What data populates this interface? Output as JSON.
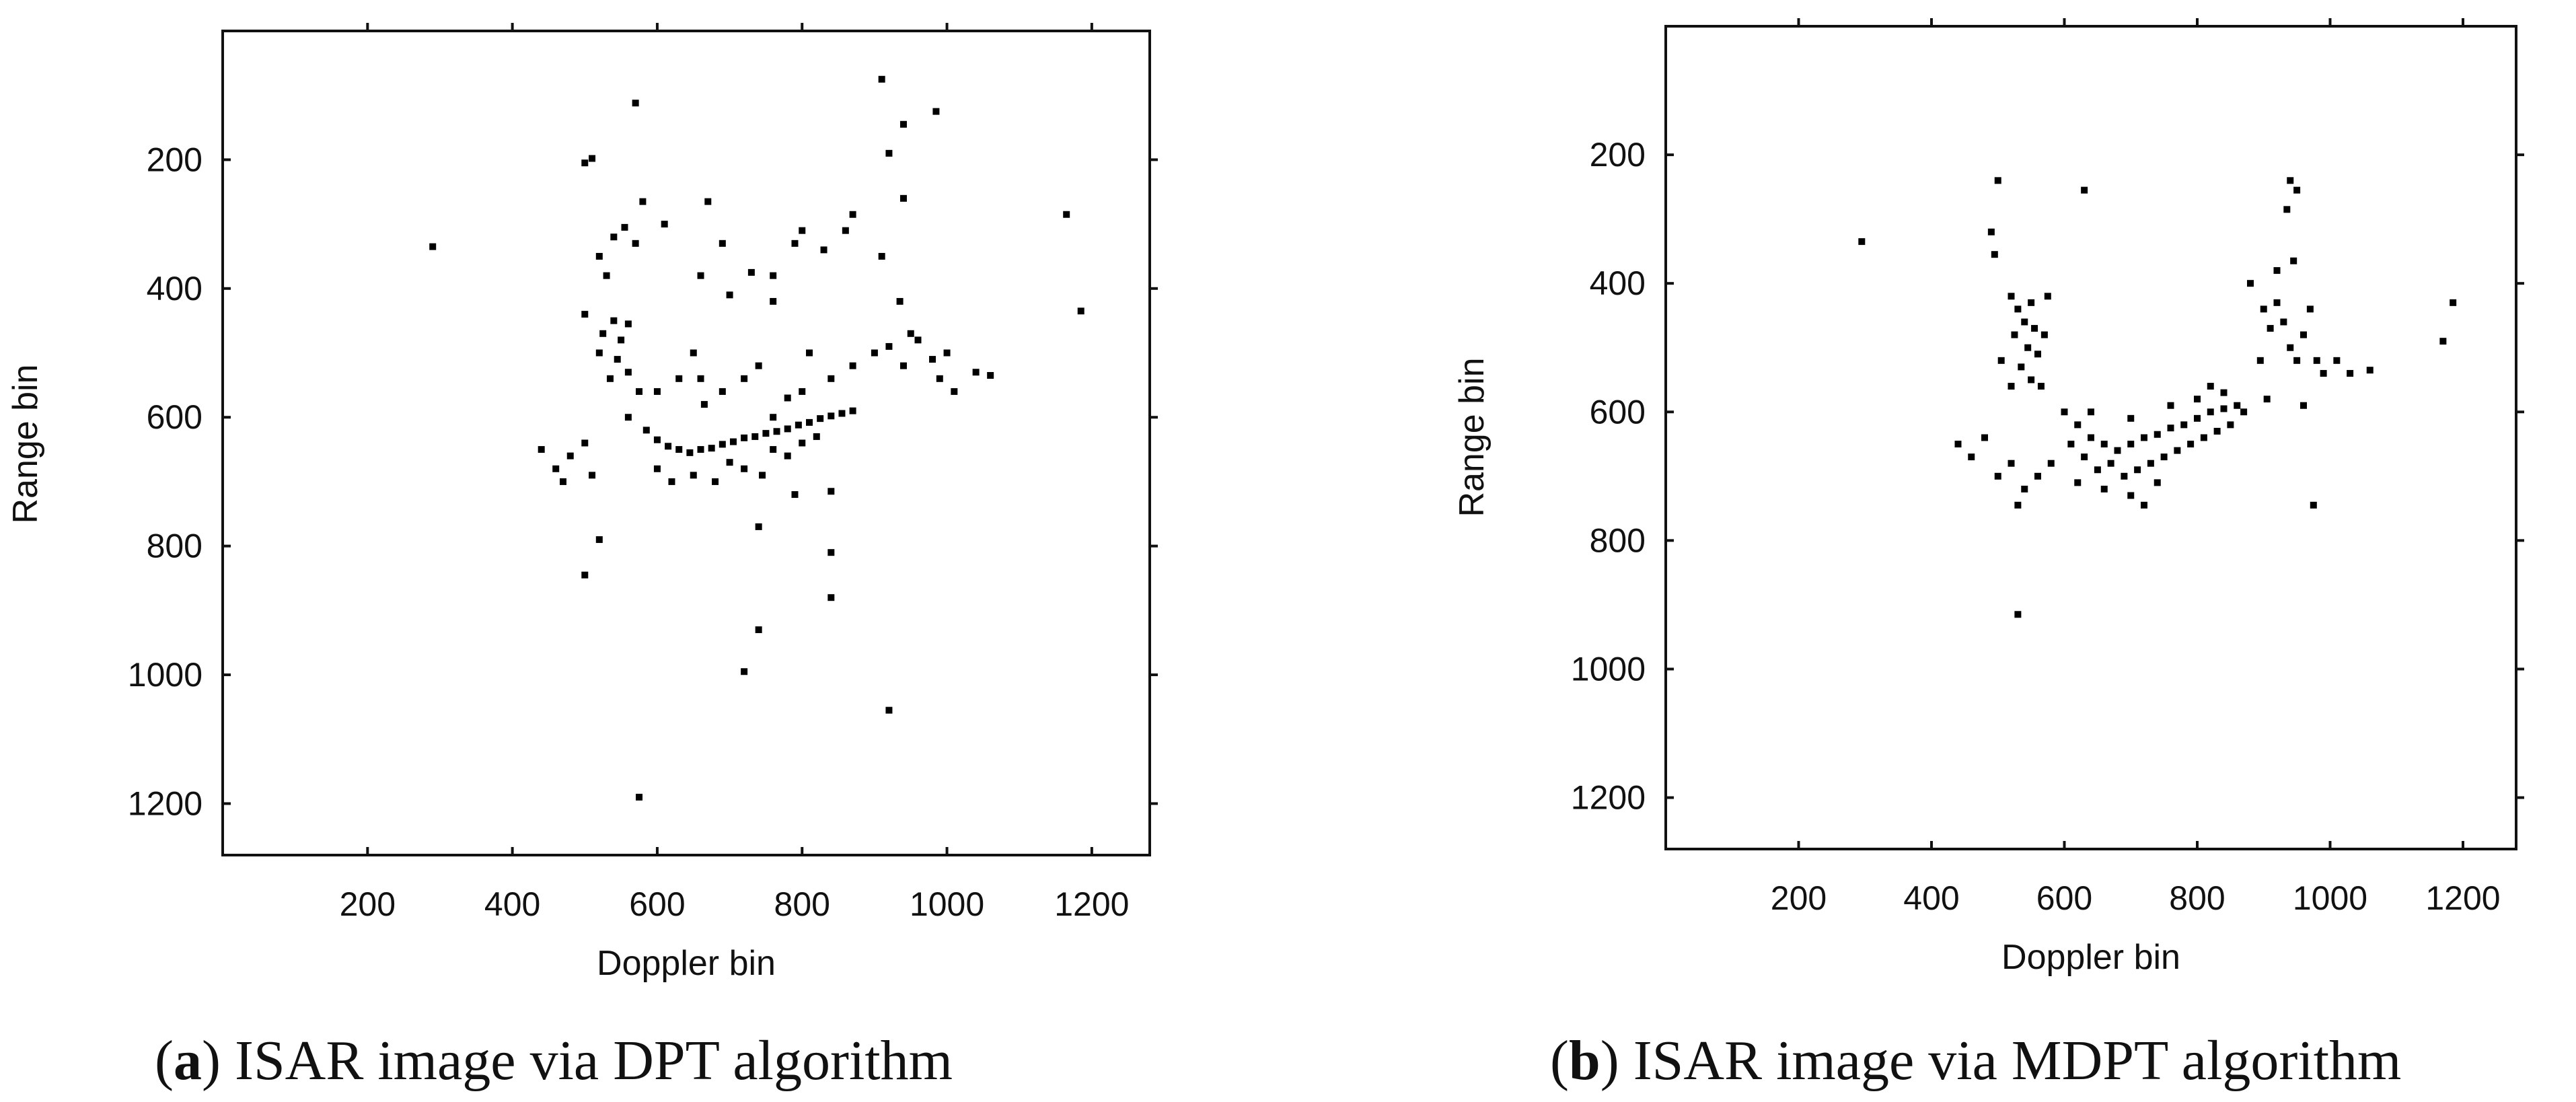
{
  "chart_data": [
    {
      "type": "scatter",
      "xlabel": "Doppler bin",
      "ylabel": "Range bin",
      "xlim": [
        0,
        1280
      ],
      "ylim": [
        0,
        1280
      ],
      "y_inverted": true,
      "xticks": [
        200,
        400,
        600,
        800,
        1000,
        1200
      ],
      "yticks": [
        200,
        400,
        600,
        800,
        1000,
        1200
      ],
      "grid": false,
      "caption_tag": "a",
      "caption_text": " ISAR image via DPT algorithm",
      "series": [
        {
          "marker_color": "#000000",
          "points": [
            [
              290,
              335
            ],
            [
              500,
              205
            ],
            [
              510,
              198
            ],
            [
              570,
              112
            ],
            [
              910,
              75
            ],
            [
              940,
              145
            ],
            [
              985,
              125
            ],
            [
              920,
              190
            ],
            [
              520,
              350
            ],
            [
              540,
              320
            ],
            [
              530,
              380
            ],
            [
              555,
              305
            ],
            [
              570,
              330
            ],
            [
              580,
              265
            ],
            [
              610,
              300
            ],
            [
              670,
              265
            ],
            [
              690,
              330
            ],
            [
              660,
              380
            ],
            [
              700,
              410
            ],
            [
              730,
              375
            ],
            [
              760,
              380
            ],
            [
              760,
              420
            ],
            [
              790,
              330
            ],
            [
              800,
              310
            ],
            [
              830,
              340
            ],
            [
              860,
              310
            ],
            [
              870,
              285
            ],
            [
              910,
              350
            ],
            [
              940,
              260
            ],
            [
              935,
              420
            ],
            [
              950,
              470
            ],
            [
              500,
              440
            ],
            [
              525,
              470
            ],
            [
              540,
              450
            ],
            [
              550,
              480
            ],
            [
              560,
              455
            ],
            [
              520,
              500
            ],
            [
              545,
              510
            ],
            [
              535,
              540
            ],
            [
              560,
              530
            ],
            [
              575,
              560
            ],
            [
              600,
              560
            ],
            [
              630,
              540
            ],
            [
              650,
              500
            ],
            [
              660,
              540
            ],
            [
              665,
              580
            ],
            [
              690,
              560
            ],
            [
              720,
              540
            ],
            [
              740,
              520
            ],
            [
              760,
              600
            ],
            [
              780,
              570
            ],
            [
              800,
              560
            ],
            [
              810,
              500
            ],
            [
              840,
              540
            ],
            [
              870,
              520
            ],
            [
              900,
              500
            ],
            [
              920,
              490
            ],
            [
              940,
              520
            ],
            [
              960,
              480
            ],
            [
              980,
              510
            ],
            [
              990,
              540
            ],
            [
              1000,
              500
            ],
            [
              1010,
              560
            ],
            [
              1040,
              530
            ],
            [
              1060,
              535
            ],
            [
              560,
              600
            ],
            [
              585,
              620
            ],
            [
              600,
              635
            ],
            [
              615,
              645
            ],
            [
              630,
              650
            ],
            [
              645,
              655
            ],
            [
              660,
              650
            ],
            [
              675,
              648
            ],
            [
              690,
              642
            ],
            [
              705,
              638
            ],
            [
              720,
              632
            ],
            [
              735,
              630
            ],
            [
              750,
              625
            ],
            [
              765,
              622
            ],
            [
              780,
              618
            ],
            [
              795,
              612
            ],
            [
              810,
              608
            ],
            [
              825,
              602
            ],
            [
              840,
              598
            ],
            [
              855,
              594
            ],
            [
              870,
              590
            ],
            [
              440,
              650
            ],
            [
              460,
              680
            ],
            [
              470,
              700
            ],
            [
              480,
              660
            ],
            [
              500,
              640
            ],
            [
              510,
              690
            ],
            [
              600,
              680
            ],
            [
              620,
              700
            ],
            [
              650,
              690
            ],
            [
              680,
              700
            ],
            [
              700,
              670
            ],
            [
              720,
              680
            ],
            [
              745,
              690
            ],
            [
              760,
              650
            ],
            [
              780,
              660
            ],
            [
              800,
              640
            ],
            [
              820,
              630
            ],
            [
              790,
              720
            ],
            [
              840,
              715
            ],
            [
              740,
              770
            ],
            [
              520,
              790
            ],
            [
              500,
              845
            ],
            [
              840,
              810
            ],
            [
              840,
              880
            ],
            [
              720,
              995
            ],
            [
              740,
              930
            ],
            [
              920,
              1055
            ],
            [
              575,
              1190
            ],
            [
              1165,
              285
            ],
            [
              1185,
              435
            ]
          ]
        }
      ]
    },
    {
      "type": "scatter",
      "xlabel": "Doppler bin",
      "ylabel": "Range bin",
      "xlim": [
        0,
        1280
      ],
      "ylim": [
        0,
        1280
      ],
      "y_inverted": true,
      "xticks": [
        200,
        400,
        600,
        800,
        1000,
        1200
      ],
      "yticks": [
        200,
        400,
        600,
        800,
        1000,
        1200
      ],
      "grid": false,
      "caption_tag": "b",
      "caption_text": " ISAR image via MDPT algorithm",
      "series": [
        {
          "marker_color": "#000000",
          "points": [
            [
              295,
              335
            ],
            [
              500,
              240
            ],
            [
              630,
              255
            ],
            [
              490,
              320
            ],
            [
              495,
              355
            ],
            [
              940,
              240
            ],
            [
              950,
              255
            ],
            [
              935,
              285
            ],
            [
              520,
              420
            ],
            [
              530,
              440
            ],
            [
              540,
              460
            ],
            [
              550,
              430
            ],
            [
              555,
              470
            ],
            [
              525,
              480
            ],
            [
              545,
              500
            ],
            [
              560,
              510
            ],
            [
              535,
              530
            ],
            [
              550,
              550
            ],
            [
              565,
              560
            ],
            [
              520,
              560
            ],
            [
              505,
              520
            ],
            [
              575,
              420
            ],
            [
              570,
              480
            ],
            [
              880,
              400
            ],
            [
              900,
              440
            ],
            [
              910,
              470
            ],
            [
              920,
              430
            ],
            [
              930,
              460
            ],
            [
              940,
              500
            ],
            [
              950,
              520
            ],
            [
              960,
              480
            ],
            [
              970,
              440
            ],
            [
              980,
              520
            ],
            [
              990,
              540
            ],
            [
              1010,
              520
            ],
            [
              1030,
              540
            ],
            [
              1060,
              535
            ],
            [
              920,
              380
            ],
            [
              945,
              365
            ],
            [
              895,
              520
            ],
            [
              905,
              580
            ],
            [
              960,
              590
            ],
            [
              600,
              600
            ],
            [
              620,
              620
            ],
            [
              640,
              640
            ],
            [
              660,
              650
            ],
            [
              680,
              660
            ],
            [
              700,
              650
            ],
            [
              720,
              640
            ],
            [
              740,
              635
            ],
            [
              760,
              625
            ],
            [
              780,
              620
            ],
            [
              800,
              610
            ],
            [
              820,
              600
            ],
            [
              840,
              595
            ],
            [
              860,
              590
            ],
            [
              610,
              650
            ],
            [
              630,
              670
            ],
            [
              650,
              690
            ],
            [
              670,
              680
            ],
            [
              690,
              700
            ],
            [
              710,
              690
            ],
            [
              730,
              680
            ],
            [
              750,
              670
            ],
            [
              770,
              660
            ],
            [
              790,
              650
            ],
            [
              810,
              640
            ],
            [
              830,
              630
            ],
            [
              850,
              620
            ],
            [
              620,
              710
            ],
            [
              660,
              720
            ],
            [
              700,
              730
            ],
            [
              740,
              710
            ],
            [
              640,
              600
            ],
            [
              700,
              610
            ],
            [
              760,
              590
            ],
            [
              800,
              580
            ],
            [
              820,
              560
            ],
            [
              840,
              570
            ],
            [
              870,
              600
            ],
            [
              440,
              650
            ],
            [
              460,
              670
            ],
            [
              480,
              640
            ],
            [
              500,
              700
            ],
            [
              520,
              680
            ],
            [
              540,
              720
            ],
            [
              560,
              700
            ],
            [
              580,
              680
            ],
            [
              530,
              745
            ],
            [
              720,
              745
            ],
            [
              975,
              745
            ],
            [
              530,
              915
            ],
            [
              1170,
              490
            ],
            [
              1185,
              430
            ]
          ]
        }
      ]
    }
  ]
}
